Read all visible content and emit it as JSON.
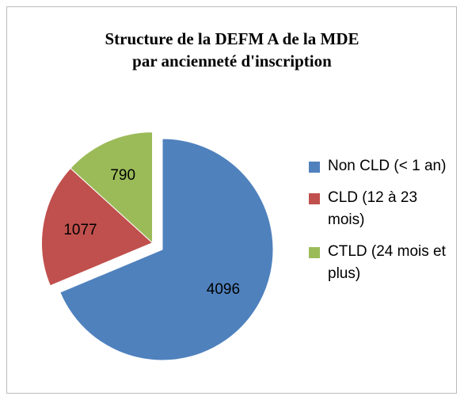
{
  "chart_data": {
    "type": "pie",
    "title": [
      "Structure de la DEFM A de la MDE",
      "par ancienneté d'inscription"
    ],
    "categories": [
      "Non CLD (< 1 an)",
      "CLD (12 à 23 mois)",
      "CTLD (24 mois et plus)"
    ],
    "values": [
      4096,
      1077,
      790
    ],
    "colors": [
      "#4f81bd",
      "#c0504d",
      "#9bbb59"
    ],
    "legend": "right"
  }
}
